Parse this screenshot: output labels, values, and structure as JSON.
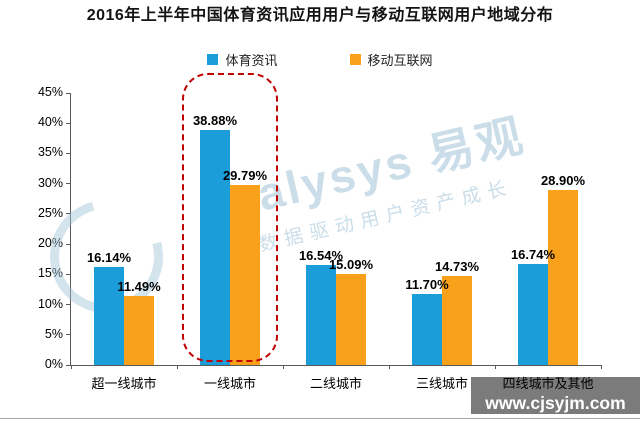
{
  "page": {
    "title": "2016年上半年中国体育资讯应用用户与移动互联网用户地域分布"
  },
  "legend": {
    "items": [
      {
        "label": "体育资讯",
        "color": "#1b9dd9"
      },
      {
        "label": "移动互联网",
        "color": "#f9a11b"
      }
    ]
  },
  "watermark": {
    "brand": "analysys 易观",
    "slogan": "大数据驱动用户资产成长"
  },
  "footer": {
    "website": "www.cjsyjm.com"
  },
  "chart_data": {
    "type": "bar",
    "title": "2016年上半年中国体育资讯应用用户与移动互联网用户地域分布",
    "categories": [
      "超一线城市",
      "一线城市",
      "二线城市",
      "三线城市",
      "四线城市及其他"
    ],
    "series": [
      {
        "name": "体育资讯",
        "color": "#1b9dd9",
        "values": [
          16.14,
          38.88,
          16.54,
          11.7,
          16.74
        ],
        "labels": [
          "16.14%",
          "38.88%",
          "16.54%",
          "11.70%",
          "16.74%"
        ]
      },
      {
        "name": "移动互联网",
        "color": "#f9a11b",
        "values": [
          11.49,
          29.79,
          15.09,
          14.73,
          28.9
        ],
        "labels": [
          "11.49%",
          "29.79%",
          "15.09%",
          "14.73%",
          "28.90%"
        ]
      }
    ],
    "ylim": [
      0,
      45
    ],
    "ytick_step": 5,
    "yticks": [
      "0%",
      "5%",
      "10%",
      "15%",
      "20%",
      "25%",
      "30%",
      "35%",
      "40%",
      "45%"
    ],
    "ylabel": "",
    "xlabel": "",
    "grid": false,
    "legend_position": "top",
    "highlight_category": "一线城市",
    "highlight_style": "red-dashed-rounded-box"
  }
}
